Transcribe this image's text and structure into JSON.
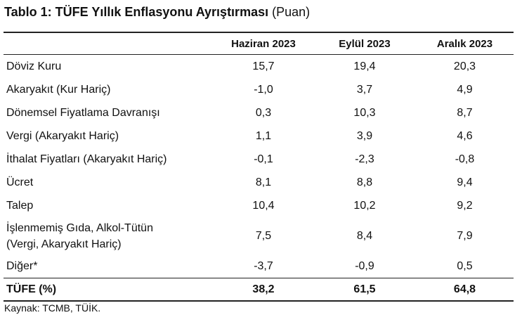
{
  "title": {
    "main": "Tablo 1: TÜFE Yıllık Enflasyonu Ayrıştırması",
    "unit": "(Puan)"
  },
  "table": {
    "header": [
      "Haziran 2023",
      "Eylül 2023",
      "Aralık 2023"
    ],
    "rows": [
      {
        "label": [
          "Döviz Kuru"
        ],
        "values": [
          "15,7",
          "19,4",
          "20,3"
        ]
      },
      {
        "label": [
          "Akaryakıt (Kur Hariç)"
        ],
        "values": [
          "-1,0",
          "3,7",
          "4,9"
        ]
      },
      {
        "label": [
          "Dönemsel Fiyatlama Davranışı"
        ],
        "values": [
          "0,3",
          "10,3",
          "8,7"
        ]
      },
      {
        "label": [
          "Vergi (Akaryakıt Hariç)"
        ],
        "values": [
          "1,1",
          "3,9",
          "4,6"
        ]
      },
      {
        "label": [
          "İthalat Fiyatları (Akaryakıt Hariç)"
        ],
        "values": [
          "-0,1",
          "-2,3",
          "-0,8"
        ]
      },
      {
        "label": [
          "Ücret"
        ],
        "values": [
          "8,1",
          "8,8",
          "9,4"
        ]
      },
      {
        "label": [
          "Talep"
        ],
        "values": [
          "10,4",
          "10,2",
          "9,2"
        ]
      },
      {
        "label": [
          "İşlenmemiş Gıda, Alkol-Tütün",
          "(Vergi, Akaryakıt Hariç)"
        ],
        "values": [
          "7,5",
          "8,4",
          "7,9"
        ]
      },
      {
        "label": [
          "Diğer*"
        ],
        "values": [
          "-3,7",
          "-0,9",
          "0,5"
        ]
      }
    ],
    "total": {
      "label": "TÜFE (%)",
      "values": [
        "38,2",
        "61,5",
        "64,8"
      ]
    }
  },
  "source": "Kaynak: TCMB, TÜİK."
}
